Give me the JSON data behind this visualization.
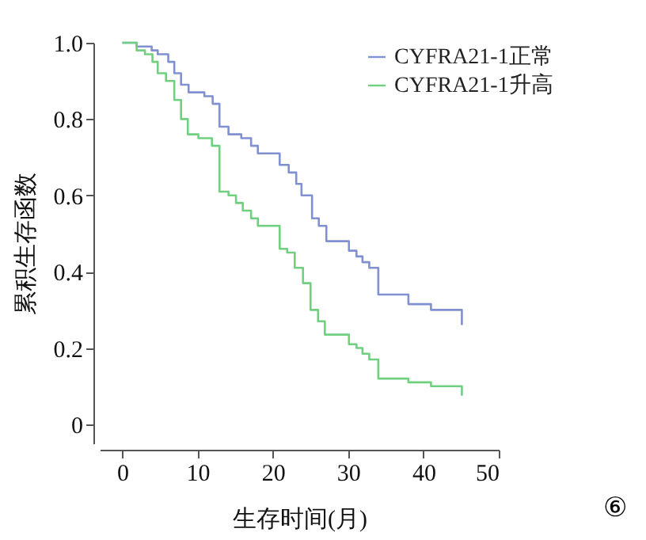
{
  "chart_data": {
    "type": "step",
    "xlabel": "生存时间(月)",
    "ylabel": "累积生存函数",
    "xlim": [
      -3,
      50
    ],
    "xticks": [
      0,
      10,
      20,
      30,
      40,
      50
    ],
    "ylim": [
      -0.05,
      1.0
    ],
    "yticks": [
      0,
      0.2,
      0.4,
      0.6,
      0.8,
      {
        "value": 1,
        "label": "1.0"
      }
    ],
    "legend": "top right",
    "grid": false,
    "annotations": [
      "⑥"
    ],
    "series": [
      {
        "name": "CYFRA21-1正常",
        "color": "#8090d0",
        "x": [
          0,
          1.9,
          3.9,
          4.7,
          6.1,
          6.9,
          7.8,
          8.8,
          10.9,
          12,
          12.9,
          14.1,
          15.8,
          17.1,
          18,
          20.9,
          22.1,
          23.1,
          23.8,
          25.2,
          26.1,
          27.1,
          30.1,
          31.1,
          31.9,
          32.8,
          34,
          38,
          41,
          45.1
        ],
        "values": [
          1.0,
          0.99,
          0.98,
          0.97,
          0.95,
          0.92,
          0.89,
          0.87,
          0.86,
          0.84,
          0.78,
          0.76,
          0.75,
          0.73,
          0.71,
          0.68,
          0.66,
          0.63,
          0.6,
          0.54,
          0.52,
          0.48,
          0.455,
          0.44,
          0.425,
          0.41,
          0.34,
          0.315,
          0.3,
          0.26
        ]
      },
      {
        "name": "CYFRA21-1升高",
        "color": "#70d080",
        "x": [
          0,
          1.9,
          3,
          4,
          4.7,
          5.8,
          6.9,
          7.8,
          8.7,
          10.1,
          11.9,
          12.9,
          14.1,
          15.1,
          16,
          17.1,
          18,
          20.9,
          21.9,
          22.9,
          24,
          25,
          26,
          26.9,
          30.1,
          31.1,
          31.9,
          32.8,
          34,
          38,
          41,
          45.1
        ],
        "values": [
          1.0,
          0.98,
          0.97,
          0.95,
          0.92,
          0.9,
          0.85,
          0.8,
          0.76,
          0.75,
          0.73,
          0.61,
          0.6,
          0.58,
          0.56,
          0.54,
          0.52,
          0.46,
          0.45,
          0.41,
          0.37,
          0.3,
          0.27,
          0.235,
          0.21,
          0.2,
          0.185,
          0.17,
          0.12,
          0.11,
          0.1,
          0.075
        ]
      }
    ]
  }
}
